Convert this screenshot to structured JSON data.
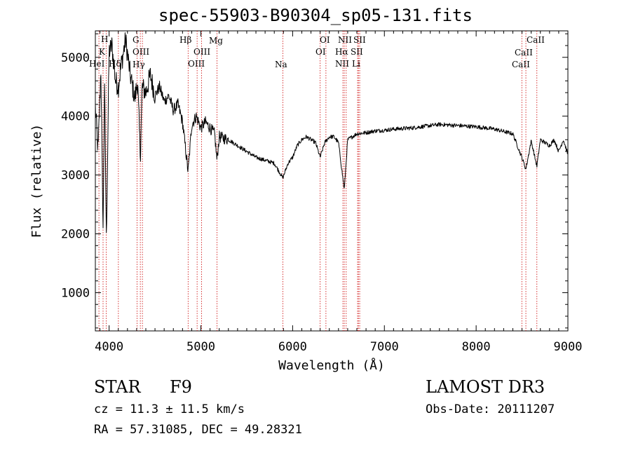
{
  "chart_data": {
    "type": "line",
    "title": "spec-55903-B90304_sp05-131.fits",
    "xlabel": "Wavelength (Å)",
    "ylabel": "Flux (relative)",
    "xlim": [
      3850,
      9000
    ],
    "ylim": [
      350,
      5450
    ],
    "xticks": [
      4000,
      5000,
      6000,
      7000,
      8000,
      9000
    ],
    "yticks": [
      1000,
      2000,
      3000,
      4000,
      5000
    ],
    "spectrum_anchors": {
      "x": [
        3850,
        3880,
        3910,
        3935,
        3950,
        3970,
        4000,
        4030,
        4070,
        4101,
        4130,
        4180,
        4230,
        4280,
        4310,
        4340,
        4360,
        4400,
        4450,
        4500,
        4550,
        4600,
        4650,
        4700,
        4750,
        4800,
        4861,
        4900,
        4950,
        5000,
        5050,
        5100,
        5150,
        5175,
        5200,
        5300,
        5400,
        5500,
        5600,
        5700,
        5800,
        5893,
        5950,
        6000,
        6050,
        6100,
        6150,
        6200,
        6250,
        6300,
        6350,
        6400,
        6450,
        6500,
        6563,
        6600,
        6650,
        6700,
        6800,
        6900,
        7000,
        7100,
        7200,
        7300,
        7400,
        7500,
        7600,
        7700,
        7800,
        7900,
        8000,
        8100,
        8200,
        8300,
        8400,
        8498,
        8542,
        8600,
        8662,
        8700,
        8750,
        8800,
        8850,
        8900,
        8950,
        9000
      ],
      "y": [
        4150,
        3400,
        4800,
        2000,
        4600,
        1900,
        5100,
        5200,
        4600,
        4500,
        4850,
        5300,
        4700,
        4300,
        4600,
        3300,
        4500,
        4400,
        4700,
        4350,
        4500,
        4250,
        4350,
        4100,
        4200,
        3900,
        3050,
        3850,
        4000,
        3800,
        3900,
        3800,
        3700,
        3250,
        3650,
        3600,
        3500,
        3400,
        3300,
        3250,
        3200,
        2950,
        3200,
        3300,
        3500,
        3600,
        3650,
        3600,
        3550,
        3300,
        3550,
        3650,
        3650,
        3550,
        2750,
        3600,
        3650,
        3700,
        3720,
        3750,
        3760,
        3780,
        3790,
        3800,
        3820,
        3840,
        3860,
        3850,
        3840,
        3830,
        3820,
        3800,
        3780,
        3740,
        3700,
        3300,
        3100,
        3580,
        3150,
        3600,
        3550,
        3500,
        3600,
        3400,
        3600,
        3350
      ]
    },
    "spectral_lines": [
      {
        "name": "HeI",
        "x": 3889
      },
      {
        "name": "K",
        "x": 3934
      },
      {
        "name": "H",
        "x": 3969
      },
      {
        "name": "Hδ",
        "x": 4101
      },
      {
        "name": "G",
        "x": 4304
      },
      {
        "name": "OIII",
        "x": 4363
      },
      {
        "name": "Hγ",
        "x": 4340
      },
      {
        "name": "Hβ",
        "x": 4861
      },
      {
        "name": "OIII",
        "x": 4959
      },
      {
        "name": "OIII",
        "x": 5007
      },
      {
        "name": "Mg",
        "x": 5175
      },
      {
        "name": "Na",
        "x": 5893
      },
      {
        "name": "OI",
        "x": 6300
      },
      {
        "name": "OI",
        "x": 6363
      },
      {
        "name": "NII",
        "x": 6548
      },
      {
        "name": "Hα",
        "x": 6563
      },
      {
        "name": "NII",
        "x": 6584
      },
      {
        "name": "Li",
        "x": 6708
      },
      {
        "name": "SII",
        "x": 6717
      },
      {
        "name": "SII",
        "x": 6731
      },
      {
        "name": "CaII",
        "x": 8498
      },
      {
        "name": "CaII",
        "x": 8542
      },
      {
        "name": "CaII",
        "x": 8662
      }
    ],
    "line_color": "#000000",
    "marker_color": "#cc0000"
  },
  "info": {
    "object_class": "STAR",
    "subclass": "F9",
    "survey": "LAMOST DR3",
    "cz": "cz = 11.3 ± 11.5 km/s",
    "obs_date": "Obs-Date: 20111207",
    "coords": "RA =  57.31085, DEC =  49.28321"
  }
}
